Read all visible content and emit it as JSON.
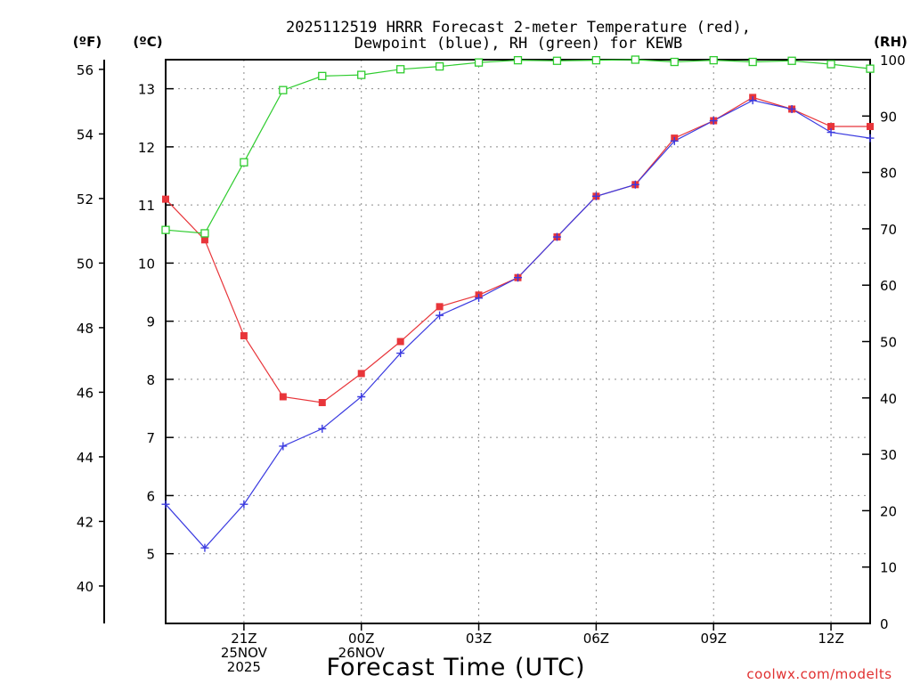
{
  "chart_data": {
    "type": "line",
    "title_line1": "2025112519 HRRR Forecast 2-meter Temperature (red),",
    "title_line2": "Dewpoint (blue), RH (green) for KEWB",
    "xlabel": "Forecast Time (UTC)",
    "unit_f": "(ºF)",
    "unit_c": "(ºC)",
    "unit_rh": "(RH)",
    "x": [
      19,
      20,
      21,
      22,
      23,
      24,
      25,
      26,
      27,
      28,
      29,
      30,
      31,
      32,
      33,
      34,
      35,
      36,
      37
    ],
    "xlim": [
      19,
      37
    ],
    "x_ticks": [
      {
        "x": 21,
        "lines": [
          "21Z",
          "25NOV",
          "2025"
        ]
      },
      {
        "x": 24,
        "lines": [
          "00Z",
          "26NOV"
        ]
      },
      {
        "x": 27,
        "lines": [
          "03Z"
        ]
      },
      {
        "x": 30,
        "lines": [
          "06Z"
        ]
      },
      {
        "x": 33,
        "lines": [
          "09Z"
        ]
      },
      {
        "x": 36,
        "lines": [
          "12Z"
        ]
      }
    ],
    "celsius_axis": {
      "ylim": [
        3.8,
        13.5
      ],
      "ticks": [
        5,
        6,
        7,
        8,
        9,
        10,
        11,
        12,
        13
      ]
    },
    "fahrenheit_ticks": [
      40,
      42,
      44,
      46,
      48,
      50,
      52,
      54,
      56
    ],
    "rh_axis": {
      "ylim": [
        0,
        100
      ],
      "ticks": [
        0,
        10,
        20,
        30,
        40,
        50,
        60,
        70,
        80,
        90,
        100
      ]
    },
    "series": [
      {
        "name": "Temperature",
        "axis": "celsius",
        "color": "#e8353a",
        "marker": "filled-square",
        "values": [
          11.1,
          10.4,
          8.75,
          7.7,
          7.6,
          8.1,
          8.65,
          9.25,
          9.45,
          9.75,
          10.45,
          11.15,
          11.35,
          12.15,
          12.45,
          12.85,
          12.65,
          12.35,
          12.35
        ]
      },
      {
        "name": "Dewpoint",
        "axis": "celsius",
        "color": "#3a3ae0",
        "marker": "plus",
        "values": [
          5.85,
          5.1,
          5.85,
          6.85,
          7.15,
          7.7,
          8.45,
          9.1,
          9.4,
          9.75,
          10.45,
          11.15,
          11.35,
          12.1,
          12.45,
          12.8,
          12.65,
          12.25,
          12.15
        ]
      },
      {
        "name": "RH",
        "axis": "rh",
        "color": "#2ecc2e",
        "marker": "open-square",
        "values": [
          69.8,
          69.2,
          81.8,
          94.6,
          97.1,
          97.3,
          98.3,
          98.8,
          99.5,
          99.9,
          99.8,
          99.9,
          100,
          99.6,
          99.9,
          99.6,
          99.8,
          99.2,
          98.4
        ]
      }
    ],
    "grid": true,
    "credit": "coolwx.com/modelts"
  }
}
